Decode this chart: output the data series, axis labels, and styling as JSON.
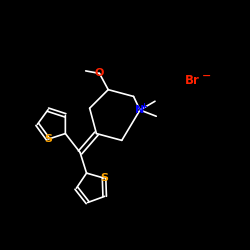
{
  "background": "#000000",
  "bond_color": "#ffffff",
  "bond_width": 1.2,
  "atom_colors": {
    "N": "#0000ff",
    "O": "#ff2200",
    "S": "#ffa500",
    "Br": "#ff2200",
    "C": "#ffffff"
  },
  "figsize": [
    2.5,
    2.5
  ],
  "dpi": 100,
  "xlim": [
    0,
    10
  ],
  "ylim": [
    0,
    10
  ]
}
